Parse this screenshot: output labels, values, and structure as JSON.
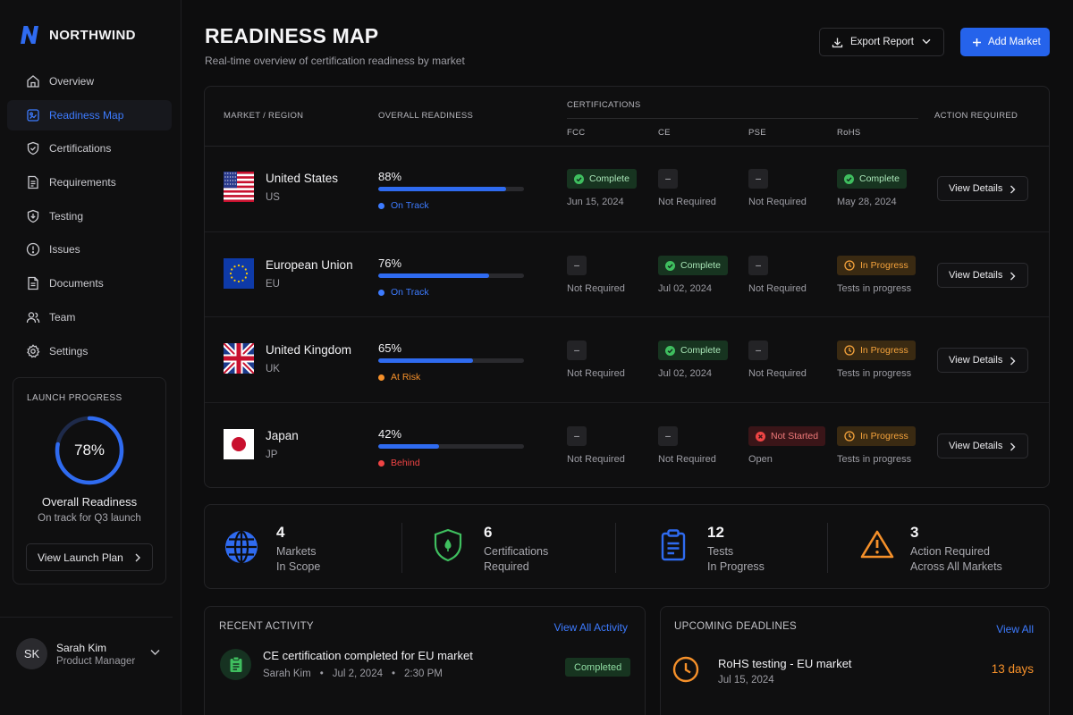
{
  "app": {
    "name": "NORTHWIND"
  },
  "sidebar": {
    "items": [
      {
        "label": "Overview",
        "icon": "home-icon"
      },
      {
        "label": "Readiness Map",
        "icon": "map-icon",
        "active": true
      },
      {
        "label": "Certifications",
        "icon": "shield-check-icon"
      },
      {
        "label": "Requirements",
        "icon": "document-icon"
      },
      {
        "label": "Testing",
        "icon": "shield-icon"
      },
      {
        "label": "Issues",
        "icon": "alert-circle-icon"
      },
      {
        "label": "Documents",
        "icon": "file-icon"
      },
      {
        "label": "Team",
        "icon": "users-icon"
      },
      {
        "label": "Settings",
        "icon": "gear-icon"
      }
    ],
    "launch": {
      "title": "LAUNCH PROGRESS",
      "percent": "78%",
      "fraction": 0.78,
      "label": "Overall Readiness",
      "sub": "On track for Q3 launch",
      "button": "View Launch Plan"
    },
    "user": {
      "initials": "SK",
      "name": "Sarah Kim",
      "role": "Product Manager"
    }
  },
  "header": {
    "title": "READINESS MAP",
    "subtitle": "Real-time overview of certification readiness by market",
    "export_label": "Export Report",
    "add_label": "Add Market"
  },
  "table": {
    "headers": {
      "market": "MARKET / REGION",
      "readiness": "OVERALL READINESS",
      "certifications": "CERTIFICATIONS",
      "fcc": "FCC",
      "ce": "CE",
      "pse": "PSE",
      "rohs": "RoHS",
      "action": "ACTION REQUIRED"
    },
    "view_label": "View Details",
    "rows": [
      {
        "country": "United States",
        "code": "US",
        "flag": "us-flag",
        "readiness": "88%",
        "fraction": 0.88,
        "status": "On Track",
        "status_color": "#3d7bff",
        "certs": [
          {
            "type": "complete",
            "label": "Complete",
            "sub": "Jun 15, 2024"
          },
          {
            "type": "dash",
            "label": "–",
            "sub": "Not Required"
          },
          {
            "type": "dash",
            "label": "–",
            "sub": "Not Required"
          },
          {
            "type": "complete",
            "label": "Complete",
            "sub": "May 28, 2024"
          }
        ]
      },
      {
        "country": "European Union",
        "code": "EU",
        "flag": "eu-flag",
        "readiness": "76%",
        "fraction": 0.76,
        "status": "On Track",
        "status_color": "#3d7bff",
        "certs": [
          {
            "type": "dash",
            "label": "–",
            "sub": "Not Required"
          },
          {
            "type": "complete",
            "label": "Complete",
            "sub": "Jul 02, 2024"
          },
          {
            "type": "dash",
            "label": "–",
            "sub": "Not Required"
          },
          {
            "type": "progress",
            "label": "In Progress",
            "sub": "Tests in progress"
          }
        ]
      },
      {
        "country": "United Kingdom",
        "code": "UK",
        "flag": "uk-flag",
        "readiness": "65%",
        "fraction": 0.65,
        "status": "At Risk",
        "status_color": "#f5902a",
        "certs": [
          {
            "type": "dash",
            "label": "–",
            "sub": "Not Required"
          },
          {
            "type": "complete",
            "label": "Complete",
            "sub": "Jul 02, 2024"
          },
          {
            "type": "dash",
            "label": "–",
            "sub": "Not Required"
          },
          {
            "type": "progress",
            "label": "In Progress",
            "sub": "Tests in progress"
          }
        ]
      },
      {
        "country": "Japan",
        "code": "JP",
        "flag": "jp-flag",
        "readiness": "42%",
        "fraction": 0.42,
        "status": "Behind",
        "status_color": "#ef4444",
        "certs": [
          {
            "type": "dash",
            "label": "–",
            "sub": "Not Required"
          },
          {
            "type": "dash",
            "label": "–",
            "sub": "Not Required"
          },
          {
            "type": "notstarted",
            "label": "Not Started",
            "sub": "Open"
          },
          {
            "type": "progress",
            "label": "In Progress",
            "sub": "Tests in progress"
          }
        ]
      }
    ]
  },
  "stats": [
    {
      "value": "4",
      "line1": "Markets",
      "line2": "In Scope",
      "icon": "globe-icon",
      "color": "#2f6bf0"
    },
    {
      "value": "6",
      "line1": "Certifications",
      "line2": "Required",
      "icon": "shield-icon",
      "color": "#3fbf5f"
    },
    {
      "value": "12",
      "line1": "Tests",
      "line2": "In Progress",
      "icon": "clipboard-icon",
      "color": "#2f6bf0"
    },
    {
      "value": "3",
      "line1": "Action Required",
      "line2": "Across All Markets",
      "icon": "warning-icon",
      "color": "#f5902a"
    }
  ],
  "activity": {
    "title": "RECENT ACTIVITY",
    "link": "View All Activity",
    "items": [
      {
        "title": "CE certification completed for EU market",
        "user": "Sarah Kim",
        "date": "Jul 2, 2024",
        "time": "2:30 PM",
        "badge": "Completed"
      }
    ]
  },
  "deadlines": {
    "title": "UPCOMING DEADLINES",
    "link": "View All",
    "items": [
      {
        "title": "RoHS testing - EU market",
        "date": "Jul 15, 2024",
        "remaining": "13 days"
      }
    ]
  },
  "colors": {
    "accent": "#2563eb",
    "complete": "#3fbf5f",
    "in_progress": "#f5a33c",
    "not_started": "#ef4444"
  }
}
